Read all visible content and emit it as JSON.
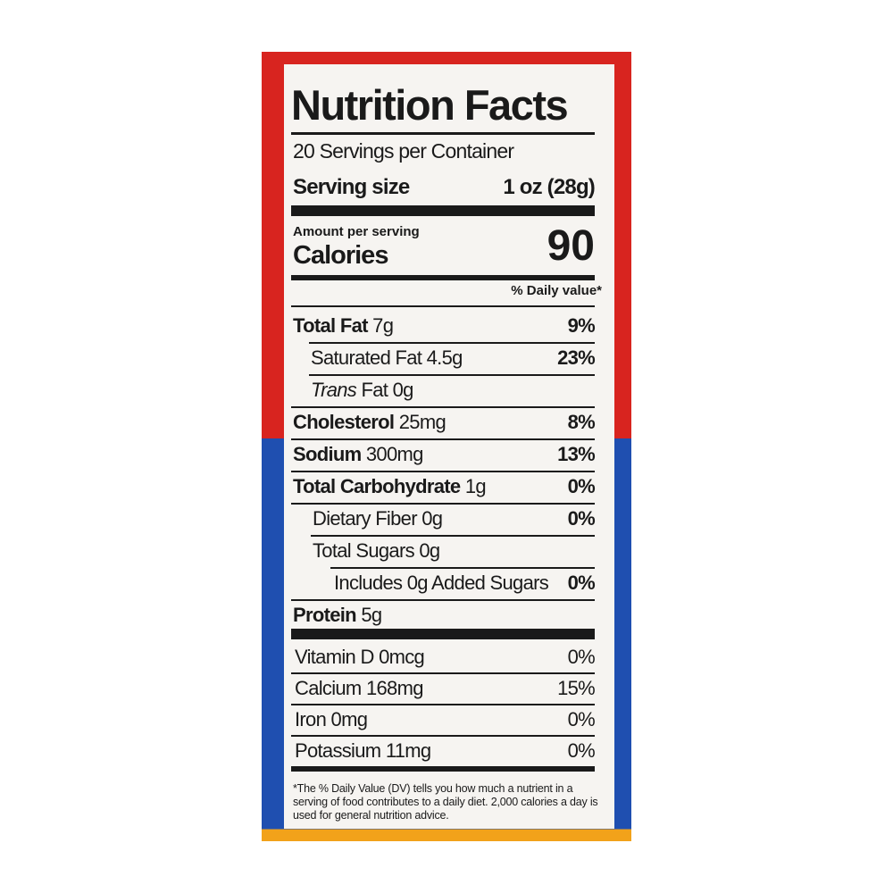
{
  "label": {
    "title": "Nutrition Facts",
    "servings": "20 Servings per Container",
    "serving_size_label": "Serving size",
    "serving_size_value": "1 oz (28g)",
    "amount_per_serving": "Amount per serving",
    "calories_label": "Calories",
    "calories_value": "90",
    "daily_value_header": "% Daily value*",
    "nutrients": [
      {
        "label": "Total Fat",
        "amount": "7g",
        "dv": "9%"
      },
      {
        "label": "Saturated Fat",
        "amount": "4.5g",
        "dv": "23%"
      },
      {
        "label_italic": "Trans",
        "label": "Fat",
        "amount": "0g"
      },
      {
        "label": "Cholesterol",
        "amount": "25mg",
        "dv": "8%"
      },
      {
        "label": "Sodium",
        "amount": "300mg",
        "dv": "13%"
      },
      {
        "label": "Total Carbohydrate",
        "amount": "1g",
        "dv": "0%"
      },
      {
        "label": "Dietary Fiber",
        "amount": "0g",
        "dv": "0%"
      },
      {
        "label": "Total Sugars",
        "amount": "0g"
      },
      {
        "label": "Includes 0g Added Sugars",
        "dv": "0%"
      },
      {
        "label": "Protein",
        "amount": "5g"
      }
    ],
    "vitamins": [
      {
        "label": "Vitamin D",
        "amount": "0mcg",
        "dv": "0%"
      },
      {
        "label": "Calcium",
        "amount": "168mg",
        "dv": "15%"
      },
      {
        "label": "Iron",
        "amount": "0mg",
        "dv": "0%"
      },
      {
        "label": "Potassium",
        "amount": "11mg",
        "dv": "0%"
      }
    ],
    "footnote": "*The % Daily Value (DV) tells you how much a nutrient in a serving of food contributes to a daily diet. 2,000 calories a day is used for general nutrition advice."
  }
}
